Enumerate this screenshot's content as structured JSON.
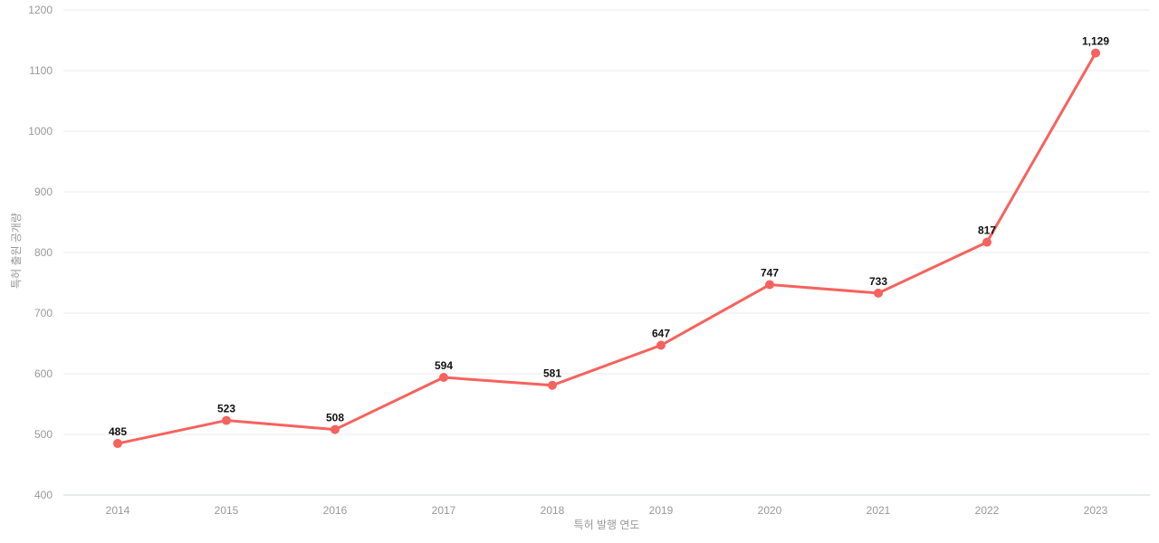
{
  "chart_data": {
    "type": "line",
    "categories": [
      "2014",
      "2015",
      "2016",
      "2017",
      "2018",
      "2019",
      "2020",
      "2021",
      "2022",
      "2023"
    ],
    "values": [
      485,
      523,
      508,
      594,
      581,
      647,
      747,
      733,
      817,
      1129
    ],
    "value_labels": [
      "485",
      "523",
      "508",
      "594",
      "581",
      "647",
      "747",
      "733",
      "817",
      "1,129"
    ],
    "title": "",
    "xlabel": "특허 발행 연도",
    "ylabel": "특허 출원 공개량",
    "ylim": [
      400,
      1200
    ],
    "ytick_step": 100,
    "yticks": [
      "400",
      "500",
      "600",
      "700",
      "800",
      "900",
      "1000",
      "1100",
      "1200"
    ],
    "grid": "horizontal",
    "legend": "none",
    "colors": {
      "line": "#f6625e",
      "marker": "#f6625e",
      "gridline": "#ebebeb",
      "axis_line": "#ccd6dd",
      "tick_text": "#999999",
      "axis_title_text": "#999999",
      "value_label_text": "#111111",
      "background": "#ffffff"
    },
    "style": {
      "line_width": 3,
      "marker_radius": 5
    }
  }
}
